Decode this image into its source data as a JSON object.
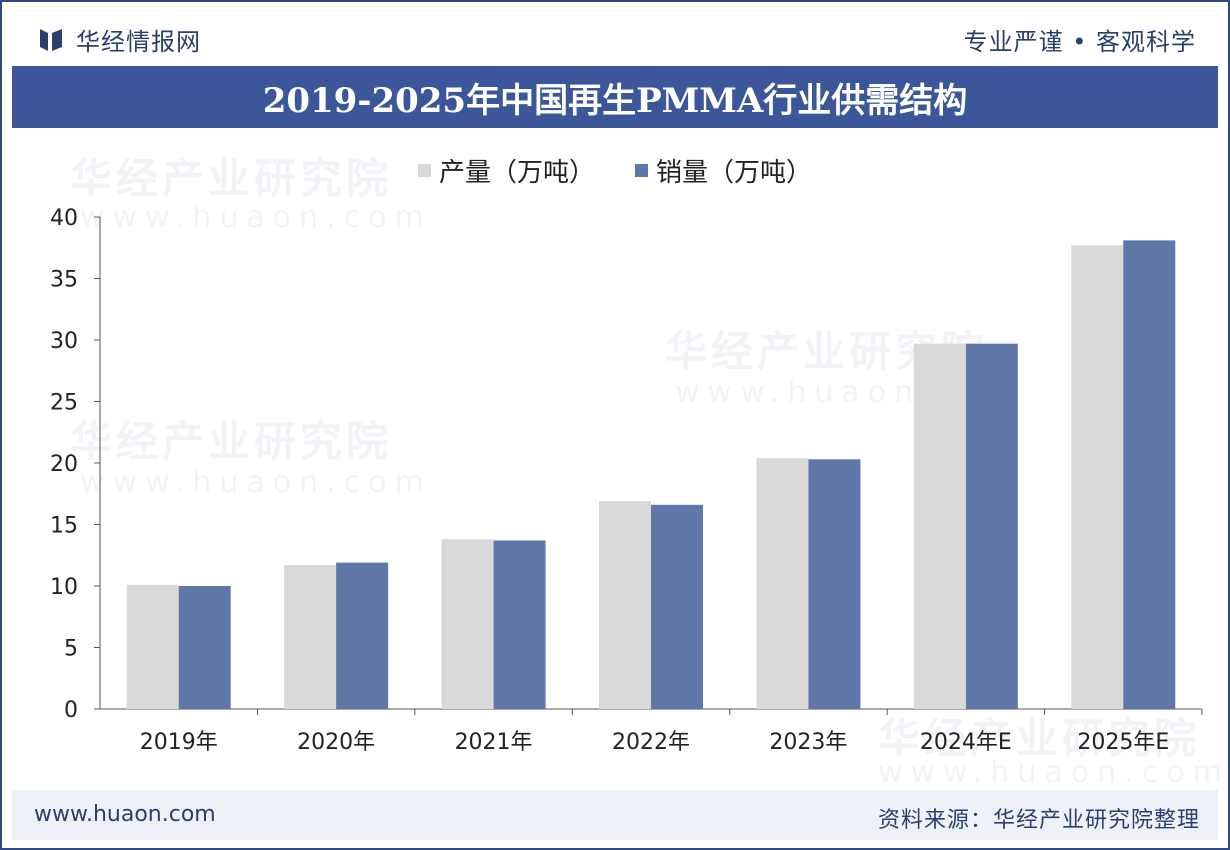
{
  "brand": {
    "name": "华经情报网",
    "slogan": "专业严谨 • 客观科学"
  },
  "footer": {
    "site": "www.huaon.com",
    "source": "资料来源：华经产业研究院整理"
  },
  "watermark": {
    "text": "华经产业研究院",
    "url": "www.huaon.com"
  },
  "colors": {
    "production": "#d9d9d9",
    "sales": "#5f78a8",
    "title_bg": "#3b5799",
    "brand": "#2b3f6c"
  },
  "chart_data": {
    "type": "bar",
    "title": "2019-2025年中国再生PMMA行业供需结构",
    "categories": [
      "2019年",
      "2020年",
      "2021年",
      "2022年",
      "2023年",
      "2024年E",
      "2025年E"
    ],
    "series": [
      {
        "name": "产量（万吨）",
        "values": [
          10.1,
          11.7,
          13.8,
          16.9,
          20.4,
          29.7,
          37.7
        ]
      },
      {
        "name": "销量（万吨）",
        "values": [
          10.0,
          11.9,
          13.7,
          16.6,
          20.3,
          29.7,
          38.1
        ]
      }
    ],
    "ylim": [
      0,
      40
    ],
    "yticks": [
      0,
      5,
      10,
      15,
      20,
      25,
      30,
      35,
      40
    ],
    "xlabel": "",
    "ylabel": "",
    "legend": "top-center",
    "grid": false
  }
}
